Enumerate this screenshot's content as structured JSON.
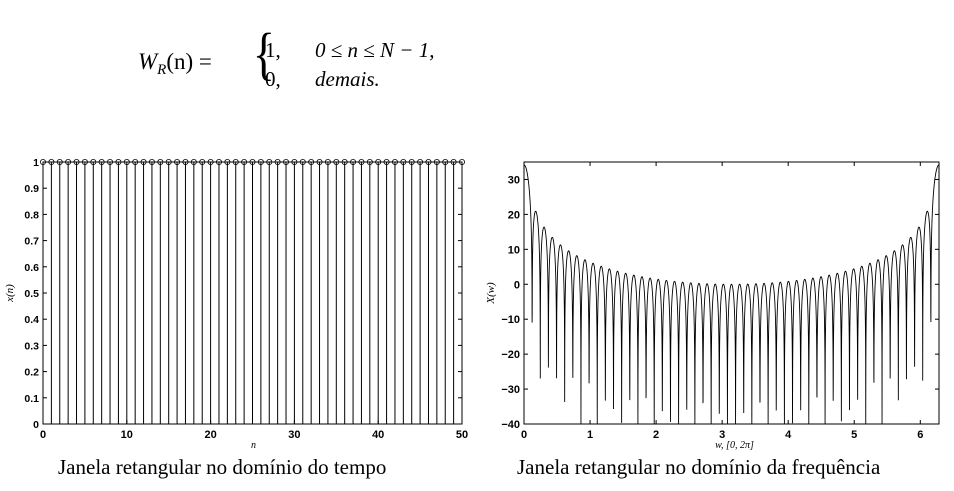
{
  "formula": {
    "lhs": "W",
    "lhs_sub": "R",
    "lhs_arg": "(n) =",
    "row1_value": "1,",
    "row1_condition": "0 ≤ n ≤ N − 1,",
    "row2_value": "0,",
    "row2_condition": "demais."
  },
  "chart_data": [
    {
      "type": "stem",
      "title": "",
      "xlabel": "n",
      "ylabel": "x(n)",
      "xlim": [
        0,
        50
      ],
      "ylim": [
        0,
        1
      ],
      "xticks": [
        "0",
        "10",
        "20",
        "30",
        "40",
        "50"
      ],
      "yticks": [
        "0",
        "0.1",
        "0.2",
        "0.3",
        "0.4",
        "0.5",
        "0.6",
        "0.7",
        "0.8",
        "0.9",
        "1"
      ],
      "x_start": 0,
      "x_end": 50,
      "value": 1,
      "caption": "Janela retangular no domínio do tempo"
    },
    {
      "type": "line",
      "title": "",
      "xlabel": "w, [0, 2π]",
      "ylabel": "X(w)",
      "xlim": [
        0,
        6.2832
      ],
      "ylim": [
        -40,
        35
      ],
      "xticks": [
        "0",
        "1",
        "2",
        "3",
        "4",
        "5",
        "6"
      ],
      "yticks": [
        "30",
        "20",
        "10",
        "0",
        "−10",
        "−20",
        "−30",
        "−40"
      ],
      "window_length": 51,
      "peak_db": 34.2,
      "caption": "Janela retangular no domínio da frequência"
    }
  ]
}
